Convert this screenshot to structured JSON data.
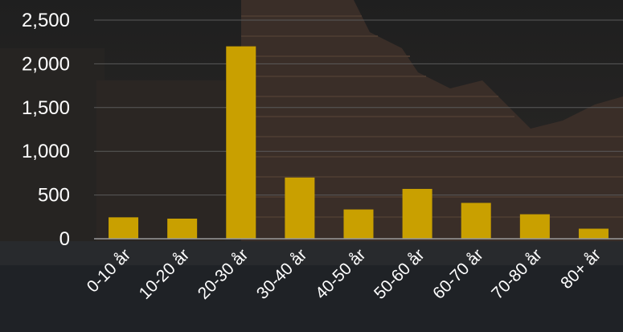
{
  "chart_data": {
    "type": "bar",
    "categories": [
      "0-10 år",
      "10-20 år",
      "20-30 år",
      "30-40 år",
      "40-50 år",
      "50-60 år",
      "60-70 år",
      "70-80 år",
      "80+ år"
    ],
    "values": [
      245,
      230,
      2200,
      700,
      335,
      570,
      410,
      280,
      115
    ],
    "ylim": [
      0,
      2500
    ],
    "yticks": [
      0,
      500,
      1000,
      1500,
      2000,
      2500
    ],
    "ytick_labels": [
      "0",
      "500",
      "1,000",
      "1,500",
      "2,000",
      "2,500"
    ],
    "grid": true,
    "bar_color": "#C9A000",
    "text_color": "#FFFFFF"
  }
}
